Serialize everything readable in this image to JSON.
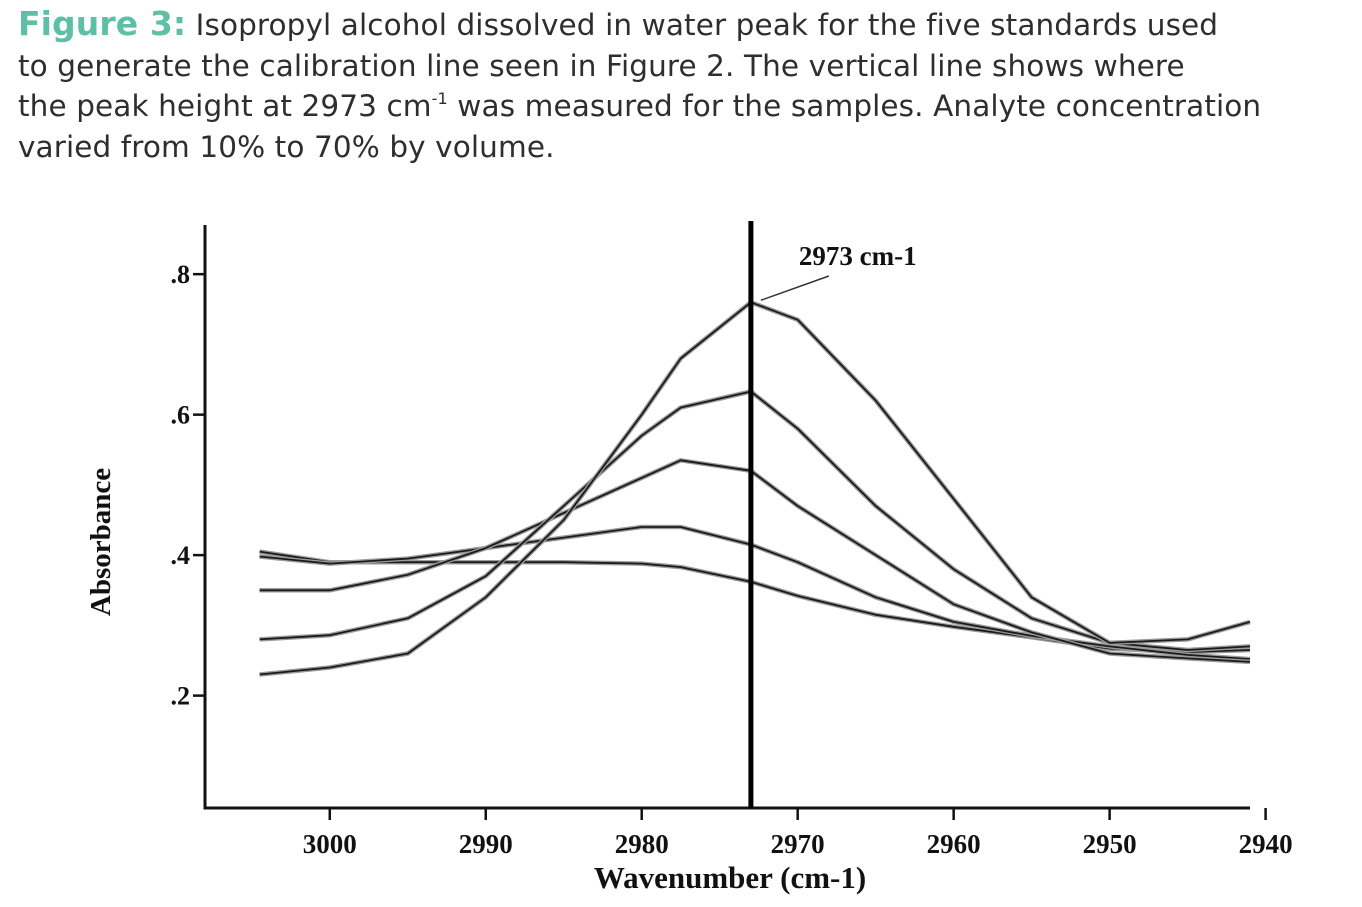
{
  "caption": {
    "label": "Figure 3:",
    "line1": "Isopropyl alcohol dissolved in water peak for the five standards used",
    "line2": "to generate the calibration line seen in Figure 2. The vertical line shows where",
    "line3_pre": "the peak height at 2973 cm",
    "line3_sup": "-1",
    "line3_post": " was measured for the samples. Analyte concentration",
    "line4": "varied from 10% to 70% by volume."
  },
  "chart_data": {
    "type": "line",
    "xlabel": "Wavenumber (cm-1)",
    "ylabel": "Absorbance",
    "xlim": [
      3008,
      2941
    ],
    "ylim": [
      0.04,
      0.87
    ],
    "x_reversed": true,
    "xticks": [
      3000,
      2990,
      2980,
      2970,
      2960,
      2950,
      2940
    ],
    "yticks": [
      0.8,
      0.6,
      0.4,
      0.2
    ],
    "ytick_labels": [
      ".8",
      ".6",
      ".4",
      ".2"
    ],
    "marker_line": {
      "x": 2973,
      "label": "2973 cm-1"
    },
    "x": [
      3004.5,
      3000,
      2995,
      2990,
      2985,
      2980,
      2977.5,
      2973,
      2970,
      2965,
      2960,
      2955,
      2950,
      2945,
      2941
    ],
    "series": [
      {
        "color": "#1a1a1a",
        "values": [
          0.405,
          0.39,
          0.39,
          0.39,
          0.39,
          0.388,
          0.383,
          0.362,
          0.342,
          0.315,
          0.298,
          0.283,
          0.267,
          0.262,
          0.265
        ]
      },
      {
        "color": "#1a1a1a",
        "values": [
          0.398,
          0.388,
          0.395,
          0.41,
          0.425,
          0.44,
          0.44,
          0.415,
          0.39,
          0.34,
          0.305,
          0.285,
          0.27,
          0.258,
          0.252
        ]
      },
      {
        "color": "#1a1a1a",
        "values": [
          0.35,
          0.35,
          0.372,
          0.41,
          0.46,
          0.51,
          0.535,
          0.52,
          0.47,
          0.4,
          0.33,
          0.29,
          0.26,
          0.253,
          0.248
        ]
      },
      {
        "color": "#1a1a1a",
        "values": [
          0.28,
          0.286,
          0.31,
          0.37,
          0.47,
          0.57,
          0.61,
          0.633,
          0.58,
          0.47,
          0.38,
          0.31,
          0.275,
          0.265,
          0.27
        ]
      },
      {
        "color": "#1a1a1a",
        "values": [
          0.23,
          0.24,
          0.26,
          0.34,
          0.45,
          0.6,
          0.68,
          0.76,
          0.735,
          0.62,
          0.48,
          0.34,
          0.275,
          0.28,
          0.305
        ]
      }
    ],
    "grid": false
  }
}
